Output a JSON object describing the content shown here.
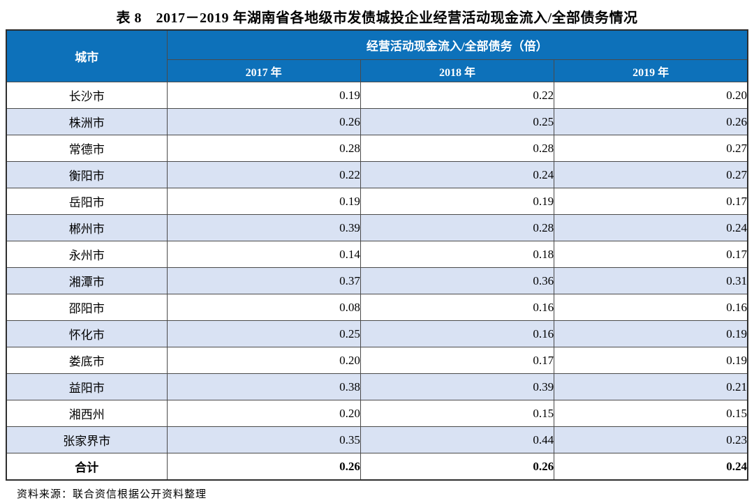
{
  "title": "表 8　2017－2019 年湖南省各地级市发债城投企业经营活动现金流入/全部债务情况",
  "source_note": "资料来源：联合资信根据公开资料整理",
  "table": {
    "city_header": "城市",
    "group_header": "经营活动现金流入/全部债务（倍）",
    "year_headers": [
      "2017 年",
      "2018 年",
      "2019 年"
    ],
    "rows": [
      {
        "city": "长沙市",
        "values": [
          "0.19",
          "0.22",
          "0.20"
        ]
      },
      {
        "city": "株洲市",
        "values": [
          "0.26",
          "0.25",
          "0.26"
        ]
      },
      {
        "city": "常德市",
        "values": [
          "0.28",
          "0.28",
          "0.27"
        ]
      },
      {
        "city": "衡阳市",
        "values": [
          "0.22",
          "0.24",
          "0.27"
        ]
      },
      {
        "city": "岳阳市",
        "values": [
          "0.19",
          "0.19",
          "0.17"
        ]
      },
      {
        "city": "郴州市",
        "values": [
          "0.39",
          "0.28",
          "0.24"
        ]
      },
      {
        "city": "永州市",
        "values": [
          "0.14",
          "0.18",
          "0.17"
        ]
      },
      {
        "city": "湘潭市",
        "values": [
          "0.37",
          "0.36",
          "0.31"
        ]
      },
      {
        "city": "邵阳市",
        "values": [
          "0.08",
          "0.16",
          "0.16"
        ]
      },
      {
        "city": "怀化市",
        "values": [
          "0.25",
          "0.16",
          "0.19"
        ]
      },
      {
        "city": "娄底市",
        "values": [
          "0.20",
          "0.17",
          "0.19"
        ]
      },
      {
        "city": "益阳市",
        "values": [
          "0.38",
          "0.39",
          "0.21"
        ]
      },
      {
        "city": "湘西州",
        "values": [
          "0.20",
          "0.15",
          "0.15"
        ]
      },
      {
        "city": "张家界市",
        "values": [
          "0.35",
          "0.44",
          "0.23"
        ]
      }
    ],
    "total_row": {
      "label": "合计",
      "values": [
        "0.26",
        "0.26",
        "0.24"
      ]
    }
  },
  "colors": {
    "header_bg": "#0d71ba",
    "header_text": "#ffffff",
    "stripe_bg": "#d9e2f3",
    "border": "#4a4a4a",
    "text": "#000000"
  }
}
